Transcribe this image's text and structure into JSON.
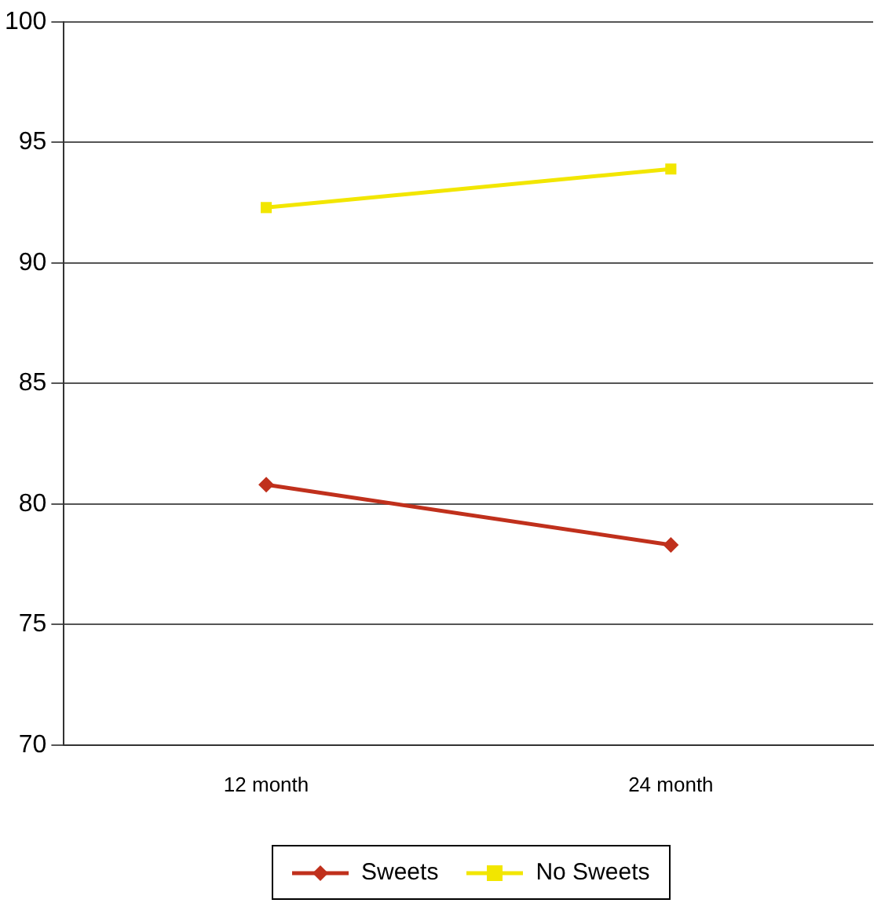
{
  "chart_data": {
    "type": "line",
    "categories": [
      "12 month",
      "24 month"
    ],
    "series": [
      {
        "name": "Sweets",
        "color": "#c0301c",
        "values": [
          80.8,
          78.3
        ],
        "marker": "diamond"
      },
      {
        "name": "No Sweets",
        "color": "#f2e600",
        "values": [
          92.3,
          93.9
        ],
        "marker": "square"
      }
    ],
    "ylim": [
      70,
      100
    ],
    "yticks": [
      70,
      75,
      80,
      85,
      90,
      95,
      100
    ],
    "grid": "y",
    "legend": "bottom",
    "line_style": "solid"
  }
}
